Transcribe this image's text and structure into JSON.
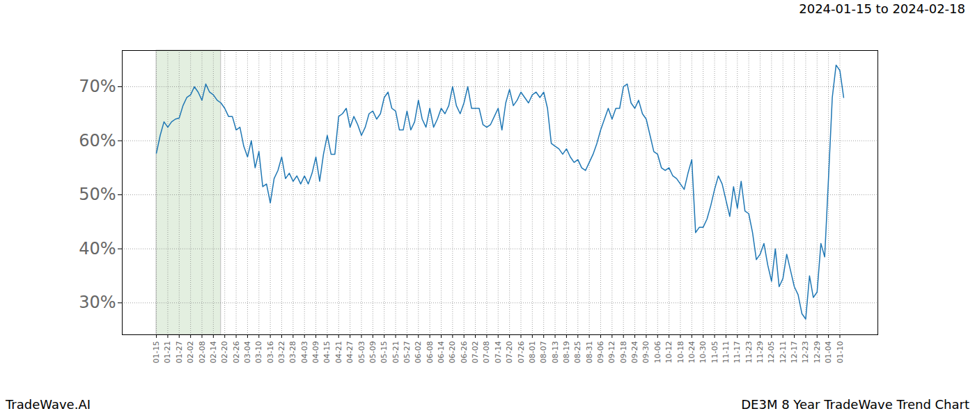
{
  "chart_data": {
    "type": "line",
    "title": "DE3M 8 Year TradeWave Trend Chart",
    "subtitle": "2024-01-15 to 2024-02-18",
    "source": "TradeWave.AI",
    "highlight": {
      "from": 0,
      "to": 17
    },
    "categories": [
      "01-15",
      null,
      null,
      "01-21",
      null,
      null,
      "01-27",
      null,
      null,
      "02-02",
      null,
      null,
      "02-08",
      null,
      null,
      "02-14",
      null,
      null,
      "02-20",
      null,
      null,
      "02-26",
      null,
      null,
      "03-04",
      null,
      null,
      "03-10",
      null,
      null,
      "03-16",
      null,
      null,
      "03-22",
      null,
      null,
      "03-28",
      null,
      null,
      "04-03",
      null,
      null,
      "04-09",
      null,
      null,
      "04-15",
      null,
      null,
      "04-21",
      null,
      null,
      "04-27",
      null,
      null,
      "05-03",
      null,
      null,
      "05-09",
      null,
      null,
      "05-15",
      null,
      null,
      "05-21",
      null,
      null,
      "05-27",
      null,
      null,
      "06-02",
      null,
      null,
      "06-08",
      null,
      null,
      "06-14",
      null,
      null,
      "06-20",
      null,
      null,
      "06-26",
      null,
      null,
      "07-02",
      null,
      null,
      "07-08",
      null,
      null,
      "07-14",
      null,
      null,
      "07-20",
      null,
      null,
      "07-26",
      null,
      null,
      "08-01",
      null,
      null,
      "08-07",
      null,
      null,
      "08-13",
      null,
      null,
      "08-19",
      null,
      null,
      "08-25",
      null,
      null,
      "08-31",
      null,
      null,
      "09-06",
      null,
      null,
      "09-12",
      null,
      null,
      "09-18",
      null,
      null,
      "09-24",
      null,
      null,
      "09-30",
      null,
      null,
      "10-06",
      null,
      null,
      "10-12",
      null,
      null,
      "10-18",
      null,
      null,
      "10-24",
      null,
      null,
      "10-30",
      null,
      null,
      "11-05",
      null,
      null,
      "11-11",
      null,
      null,
      "11-17",
      null,
      null,
      "11-23",
      null,
      null,
      "11-29",
      null,
      null,
      "12-05",
      null,
      null,
      "12-11",
      null,
      null,
      "12-17",
      null,
      null,
      "12-23",
      null,
      null,
      "12-29",
      null,
      null,
      "01-04",
      null,
      null,
      "01-10",
      null
    ],
    "values": [
      57.7,
      61,
      63.5,
      62.5,
      63.5,
      64,
      64.2,
      66.5,
      68,
      68.5,
      70,
      69,
      67.5,
      70.5,
      69,
      68.5,
      67.5,
      67,
      66,
      64.5,
      64.5,
      62,
      62.5,
      59,
      57,
      60,
      55,
      58,
      51.5,
      52,
      48.5,
      53,
      54.5,
      57,
      53,
      54,
      52.5,
      53.5,
      52,
      53.5,
      52,
      54,
      57,
      52.5,
      57.5,
      61,
      57.5,
      57.5,
      64.5,
      65,
      66,
      62.5,
      64.5,
      63,
      61,
      62.5,
      65,
      65.5,
      64,
      65,
      68,
      69,
      66,
      65.5,
      62,
      62,
      65.5,
      62,
      63.5,
      67.5,
      64,
      62.5,
      66,
      62.5,
      64,
      66,
      65,
      66.5,
      70,
      66.5,
      65,
      67,
      70,
      66,
      66,
      66,
      63,
      62.5,
      63,
      64.5,
      66,
      62,
      67,
      69.5,
      66.5,
      67.5,
      69,
      68,
      67,
      68.5,
      69,
      68,
      69,
      66,
      59.5,
      59,
      58.5,
      57.5,
      58.5,
      57,
      56,
      56.5,
      55,
      54.5,
      56,
      57.5,
      59.5,
      62,
      64,
      66,
      64,
      66,
      66,
      70,
      70.5,
      67,
      66,
      67.5,
      65,
      64,
      61,
      58,
      57.5,
      55,
      54.5,
      55,
      53.5,
      53,
      52,
      51,
      54,
      56.5,
      43,
      44,
      44,
      45.5,
      48,
      51,
      53.5,
      52,
      49,
      46,
      51.5,
      47.5,
      52.5,
      47,
      46.5,
      43,
      38,
      39,
      41,
      37,
      34,
      40,
      33,
      34.5,
      39,
      36,
      33,
      31.5,
      28,
      27,
      35,
      31,
      32,
      41,
      38.5,
      53,
      68,
      74,
      73,
      68
    ],
    "color": "#1f77b4",
    "ylim": [
      24.1,
      76.7
    ],
    "yticks": [
      {
        "value": 30,
        "label": "30%"
      },
      {
        "value": 40,
        "label": "40%"
      },
      {
        "value": 50,
        "label": "50%"
      },
      {
        "value": 60,
        "label": "60%"
      },
      {
        "value": 70,
        "label": "70%"
      }
    ],
    "grid": true
  }
}
